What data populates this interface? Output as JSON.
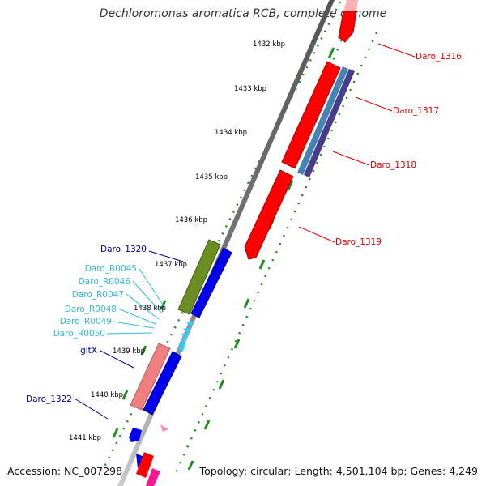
{
  "title": "Dechloromonas aromatica RCB, complete genome",
  "footer": {
    "accession": "Accession: NC_007298",
    "summary": "Topology: circular; Length: 4,501,104 bp; Genes: 4,249"
  },
  "ruler": {
    "ticks": [
      "1432 kbp",
      "1433 kbp",
      "1434 kbp",
      "1435 kbp",
      "1436 kbp",
      "1437 kbp",
      "1438 kbp",
      "1439 kbp",
      "1440 kbp",
      "1441 kbp"
    ]
  },
  "genes_right": [
    {
      "label": "Daro_1316",
      "color": "#dd0000"
    },
    {
      "label": "Daro_1317",
      "color": "#dd0000"
    },
    {
      "label": "Daro_1318",
      "color": "#dd0000"
    },
    {
      "label": "Daro_1319",
      "color": "#dd0000"
    }
  ],
  "genes_left": [
    {
      "label": "Daro_1320",
      "color": "#00008b"
    },
    {
      "label": "Daro_R0045",
      "color": "#33bbdd"
    },
    {
      "label": "Daro_R0046",
      "color": "#33bbdd"
    },
    {
      "label": "Daro_R0047",
      "color": "#33bbdd"
    },
    {
      "label": "Daro_R0048",
      "color": "#33bbdd"
    },
    {
      "label": "Daro_R0049",
      "color": "#33bbdd"
    },
    {
      "label": "Daro_R0050",
      "color": "#33bbdd"
    },
    {
      "label": "gltX",
      "color": "#00008b"
    },
    {
      "label": "Daro_1322",
      "color": "#00008b"
    }
  ],
  "colors": {
    "cds_forward": "#ff0000",
    "cds_reverse": "#0000ee",
    "tRNA": "#33ccff",
    "rRNA": "#ff88bb",
    "olive_feature": "#6b8e23",
    "pink_feature": "#f08080",
    "steelblue_feature": "#4682b4",
    "slateblue_feature": "#483d8b",
    "backbone": "#888888",
    "tick": "#228b22"
  }
}
